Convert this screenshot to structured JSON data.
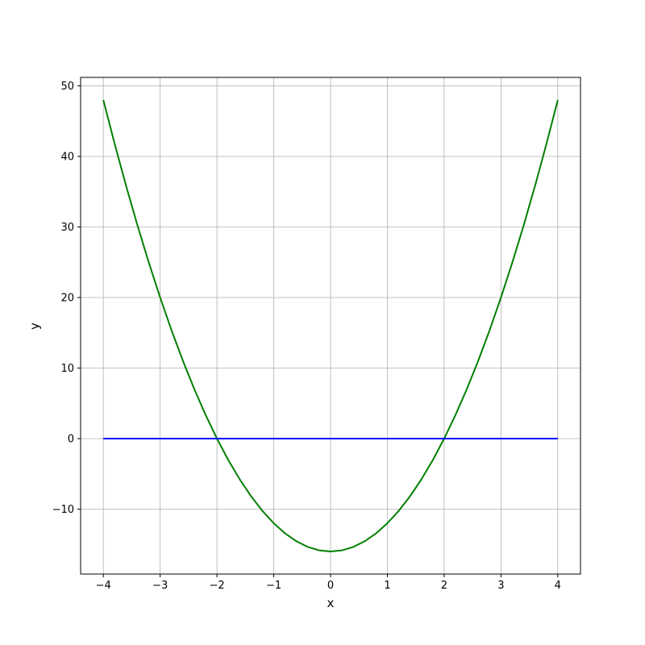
{
  "figure": {
    "background": "#ffffff"
  },
  "chart_data": {
    "type": "line",
    "title": "",
    "xlabel": "x",
    "ylabel": "y",
    "xlim": [
      -4.4,
      4.4
    ],
    "ylim": [
      -19.2,
      51.2
    ],
    "xtick_values": [
      -4,
      -3,
      -2,
      -1,
      0,
      1,
      2,
      3,
      4
    ],
    "xtick_labels": [
      "−4",
      "−3",
      "−2",
      "−1",
      "0",
      "1",
      "2",
      "3",
      "4"
    ],
    "ytick_values": [
      -10,
      0,
      10,
      20,
      30,
      40,
      50
    ],
    "ytick_labels": [
      "−10",
      "0",
      "10",
      "20",
      "30",
      "40",
      "50"
    ],
    "grid": true,
    "grid_color": "#b0b0b0",
    "spine_color": "#000000",
    "tick_color": "#000000",
    "legend": "none",
    "series": [
      {
        "name": "parabola",
        "color": "#008000",
        "linewidth": 2,
        "x": [
          -4.0,
          -3.8,
          -3.6,
          -3.4,
          -3.2,
          -3.0,
          -2.8,
          -2.6,
          -2.4,
          -2.2,
          -2.0,
          -1.8,
          -1.6,
          -1.4,
          -1.2,
          -1.0,
          -0.8,
          -0.6,
          -0.4,
          -0.2,
          0.0,
          0.2,
          0.4,
          0.6,
          0.8,
          1.0,
          1.2,
          1.4,
          1.6,
          1.8,
          2.0,
          2.2,
          2.4,
          2.6,
          2.8,
          3.0,
          3.2,
          3.4,
          3.6,
          3.8,
          4.0
        ],
        "y": [
          48.0,
          41.76,
          35.84,
          30.24,
          24.96,
          20.0,
          15.36,
          11.04,
          7.04,
          3.36,
          0.0,
          -3.04,
          -5.76,
          -8.16,
          -10.24,
          -12.0,
          -13.44,
          -14.56,
          -15.36,
          -15.84,
          -16.0,
          -15.84,
          -15.36,
          -14.56,
          -13.44,
          -12.0,
          -10.24,
          -8.16,
          -5.76,
          -3.04,
          0.0,
          3.36,
          7.04,
          11.04,
          15.36,
          20.0,
          24.96,
          30.24,
          35.84,
          41.76,
          48.0
        ]
      },
      {
        "name": "zero-line",
        "color": "#0000ff",
        "linewidth": 2,
        "x": [
          -4.0,
          4.0
        ],
        "y": [
          0.0,
          0.0
        ]
      }
    ]
  }
}
